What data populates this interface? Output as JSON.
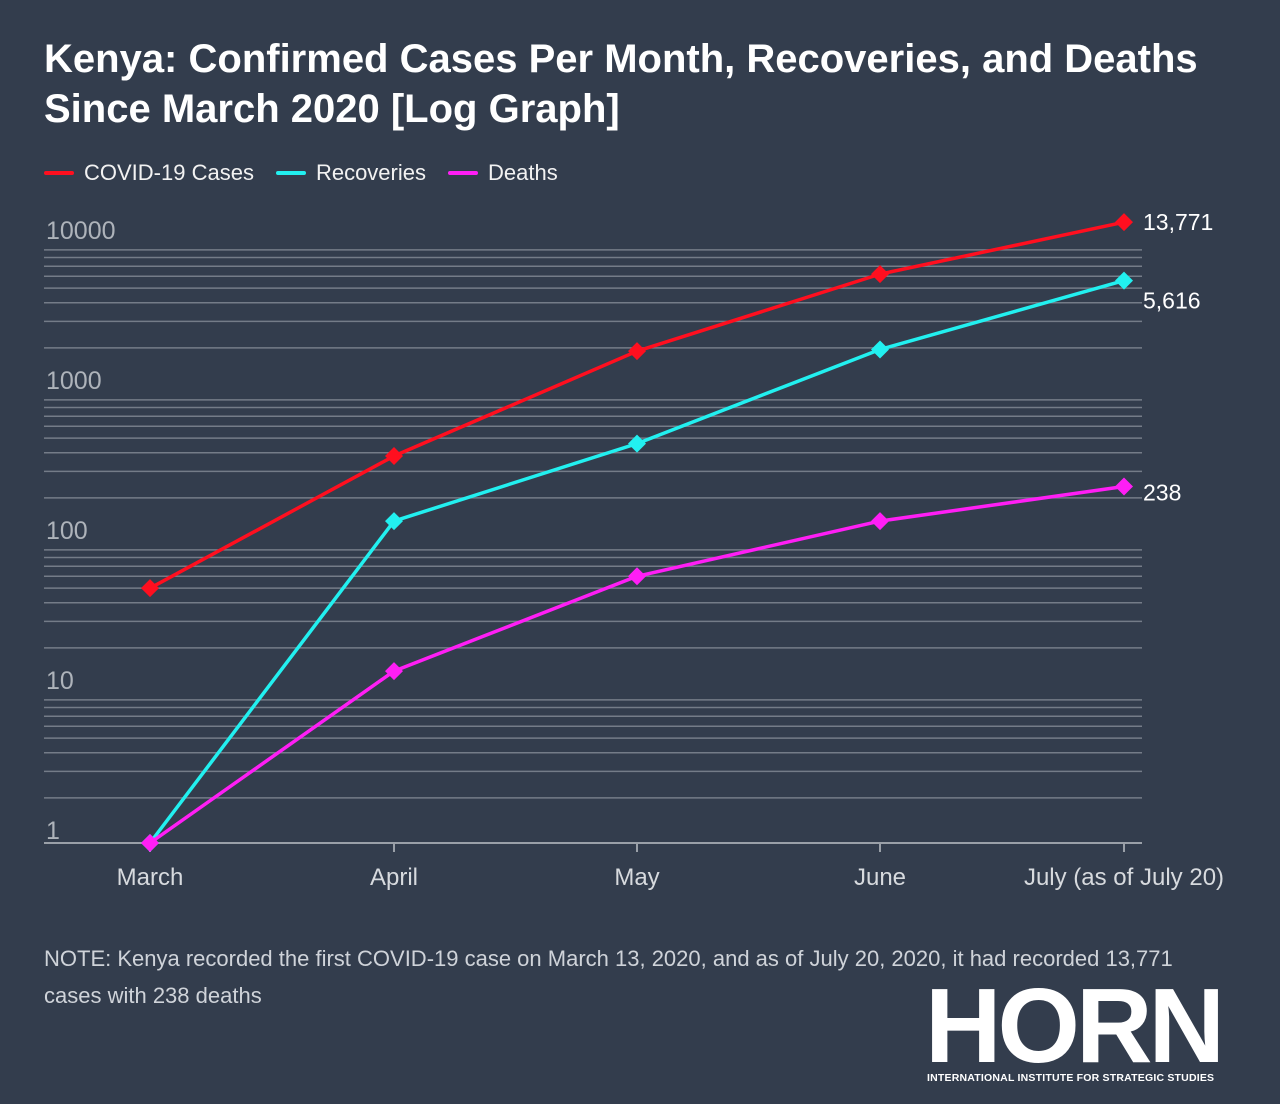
{
  "title": "Kenya: Confirmed Cases Per Month, Recoveries, and Deaths Since March 2020 [Log Graph]",
  "note": "NOTE: Kenya recorded the first COVID-19 case on March 13, 2020, and as of July 20, 2020, it had recorded 13,771 cases with 238 deaths",
  "logo": {
    "word": "HORN",
    "subtitle": "INTERNATIONAL INSTITUTE FOR STRATEGIC STUDIES"
  },
  "chart_data": {
    "type": "line",
    "title": "Kenya: Confirmed Cases Per Month, Recoveries, and Deaths Since March 2020 [Log Graph]",
    "categories": [
      "March",
      "April",
      "May",
      "June",
      "July (as of July 20)"
    ],
    "yscale": "log",
    "ylim": [
      1,
      10000
    ],
    "yticks": [
      "1",
      "10",
      "100",
      "1000",
      "10000"
    ],
    "grid": true,
    "legend_position": "top-left",
    "series": [
      {
        "name": "COVID-19 Cases",
        "color": "#ff0f1f",
        "values": [
          50,
          380,
          1900,
          6200,
          13771
        ],
        "end_label": "13,771"
      },
      {
        "name": "Recoveries",
        "color": "#22f0f0",
        "values": [
          1,
          140,
          460,
          1950,
          5616
        ],
        "end_label": "5,616"
      },
      {
        "name": "Deaths",
        "color": "#ff1ef5",
        "values": [
          1,
          14,
          60,
          140,
          238
        ],
        "end_label": "238"
      }
    ]
  }
}
